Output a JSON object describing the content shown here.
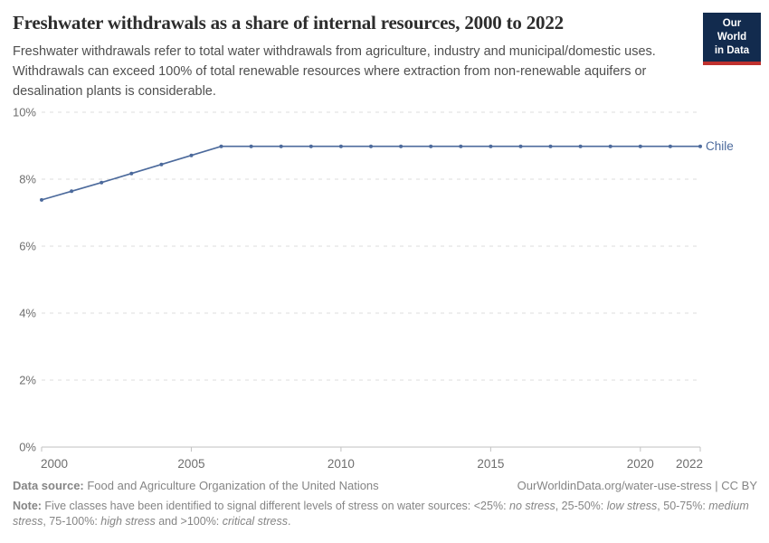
{
  "header": {
    "title": "Freshwater withdrawals as a share of internal resources, 2000 to 2022",
    "subtitle": "Freshwater withdrawals refer to total water withdrawals from agriculture, industry and municipal/domestic uses. Withdrawals can exceed 100% of total renewable resources where extraction from non-renewable aquifers or desalination plants is considerable.",
    "logo": {
      "line1": "Our World",
      "line2": "in Data",
      "bg": "#122b4e",
      "accent": "#bf312e"
    }
  },
  "chart_data": {
    "type": "line",
    "title": "Freshwater withdrawals as a share of internal resources, 2000 to 2022",
    "x": [
      2000,
      2001,
      2002,
      2003,
      2004,
      2005,
      2006,
      2007,
      2008,
      2009,
      2010,
      2011,
      2012,
      2013,
      2014,
      2015,
      2016,
      2017,
      2018,
      2019,
      2020,
      2021,
      2022
    ],
    "series": [
      {
        "name": "Chile",
        "color": "#4c6a9c",
        "values": [
          7.38,
          7.64,
          7.9,
          8.17,
          8.44,
          8.71,
          8.98,
          8.98,
          8.98,
          8.98,
          8.98,
          8.98,
          8.98,
          8.98,
          8.98,
          8.98,
          8.98,
          8.98,
          8.98,
          8.98,
          8.98,
          8.98,
          8.98
        ]
      }
    ],
    "xticks": [
      2000,
      2005,
      2010,
      2015,
      2020,
      2022
    ],
    "yticks": [
      {
        "value": 0,
        "label": "0%"
      },
      {
        "value": 2,
        "label": "2%"
      },
      {
        "value": 4,
        "label": "4%"
      },
      {
        "value": 6,
        "label": "6%"
      },
      {
        "value": 8,
        "label": "8%"
      },
      {
        "value": 10,
        "label": "10%"
      }
    ],
    "xlim": [
      2000,
      2022
    ],
    "ylim": [
      0,
      10
    ],
    "grid": "horizontal-dashed",
    "legend": "series-end-label",
    "grid_color": "#dcdcdc",
    "axis_color": "#c2c2c2",
    "tick_label_color": "#6e6e6e"
  },
  "footer": {
    "datasource_label": "Data source:",
    "datasource_value": " Food and Agriculture Organization of the United Nations",
    "attribution": "OurWorldinData.org/water-use-stress | CC BY",
    "note_segments": [
      {
        "text": "Note: ",
        "bold": true
      },
      {
        "text": "Five classes have been identified to signal different levels of stress on water sources: <25%: "
      },
      {
        "text": "no stress",
        "italic": true
      },
      {
        "text": ", 25-50%: "
      },
      {
        "text": "low stress",
        "italic": true
      },
      {
        "text": ", 50-75%: "
      },
      {
        "text": "medium stress",
        "italic": true
      },
      {
        "text": ", 75-100%: "
      },
      {
        "text": "high stress",
        "italic": true
      },
      {
        "text": " and >100%: "
      },
      {
        "text": "critical stress",
        "italic": true
      },
      {
        "text": "."
      }
    ]
  }
}
